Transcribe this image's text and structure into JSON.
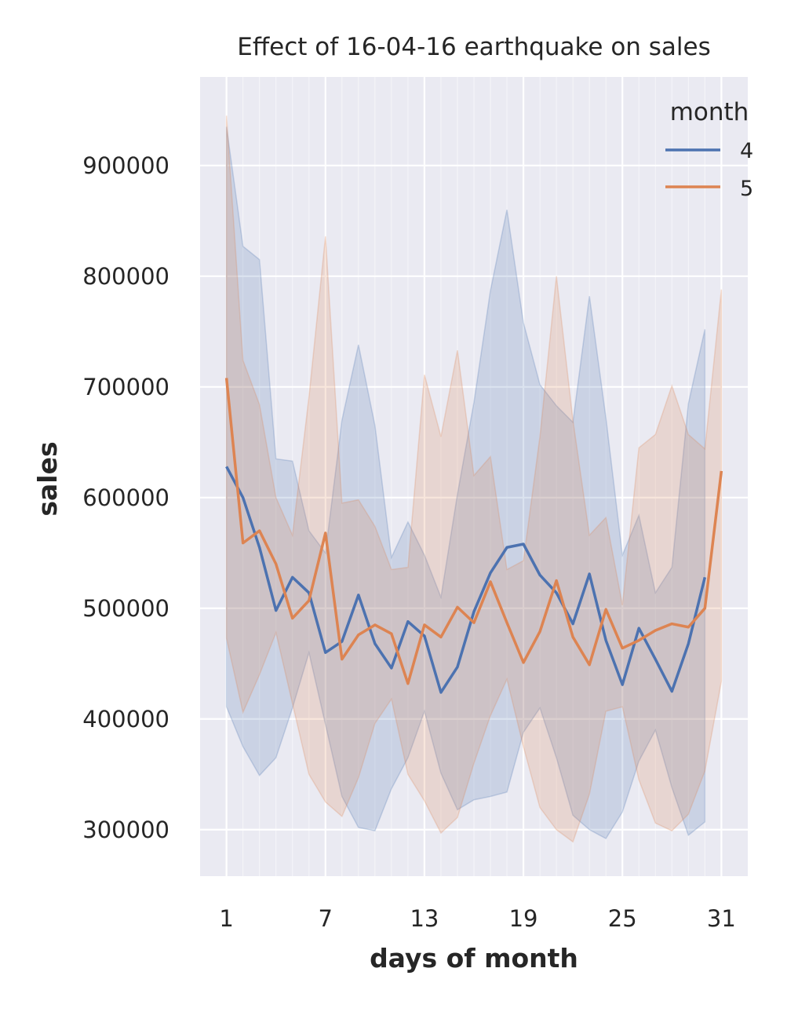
{
  "chart_data": {
    "type": "line",
    "title": "Effect of 16-04-16 earthquake on sales",
    "xlabel": "days of month",
    "ylabel": "sales",
    "xlim": [
      -0.6,
      32.6
    ],
    "ylim": [
      258000,
      980000
    ],
    "xticks": [
      1,
      7,
      13,
      19,
      25,
      31
    ],
    "yticks": [
      300000,
      400000,
      500000,
      600000,
      700000,
      800000,
      900000
    ],
    "grid": true,
    "minor_vertical_grid": true,
    "background": "#eaeaf2",
    "legend": {
      "title": "month",
      "position": "top-right"
    },
    "series": [
      {
        "name": "4",
        "color": "#4c72b0",
        "x": [
          1,
          2,
          3,
          4,
          5,
          6,
          7,
          8,
          9,
          10,
          11,
          12,
          13,
          14,
          15,
          16,
          17,
          18,
          19,
          20,
          21,
          22,
          23,
          24,
          25,
          26,
          27,
          28,
          29,
          30
        ],
        "values": [
          628000,
          600000,
          555000,
          498000,
          528000,
          514000,
          460000,
          470000,
          512000,
          468000,
          446000,
          488000,
          475000,
          424000,
          447000,
          497000,
          532000,
          555000,
          558000,
          530000,
          514000,
          486000,
          531000,
          471000,
          431000,
          482000,
          454000,
          425000,
          468000,
          528000
        ],
        "upper": [
          935000,
          827000,
          815000,
          635000,
          633000,
          570000,
          550000,
          670000,
          738000,
          665000,
          546000,
          578000,
          548000,
          510000,
          603000,
          686000,
          787000,
          860000,
          758000,
          702000,
          683000,
          668000,
          782000,
          672000,
          548000,
          584000,
          514000,
          537000,
          685000,
          752000
        ],
        "lower": [
          411000,
          375000,
          349000,
          365000,
          410000,
          460000,
          395000,
          330000,
          302000,
          299000,
          337000,
          365000,
          407000,
          351000,
          318000,
          327000,
          330000,
          334000,
          388000,
          410000,
          365000,
          313000,
          300000,
          292000,
          316000,
          362000,
          390000,
          338000,
          295000,
          307000
        ]
      },
      {
        "name": "5",
        "color": "#dd8452",
        "x": [
          1,
          2,
          3,
          4,
          5,
          6,
          7,
          8,
          9,
          10,
          11,
          12,
          13,
          14,
          15,
          16,
          17,
          18,
          19,
          20,
          21,
          22,
          23,
          24,
          25,
          26,
          27,
          28,
          29,
          30,
          31
        ],
        "values": [
          708000,
          559000,
          570000,
          540000,
          491000,
          507000,
          568000,
          454000,
          476000,
          485000,
          477000,
          432000,
          485000,
          474000,
          501000,
          487000,
          524000,
          487000,
          451000,
          479000,
          525000,
          474000,
          449000,
          499000,
          464000,
          471000,
          480000,
          486000,
          483000,
          500000,
          624000
        ],
        "upper": [
          945000,
          724000,
          684000,
          600000,
          566000,
          691000,
          836000,
          595000,
          598000,
          574000,
          535000,
          537000,
          711000,
          655000,
          733000,
          620000,
          637000,
          535000,
          543000,
          655000,
          800000,
          670000,
          566000,
          582000,
          503000,
          645000,
          657000,
          701000,
          657000,
          644000,
          788000
        ],
        "lower": [
          473000,
          406000,
          440000,
          478000,
          414000,
          350000,
          325000,
          312000,
          347000,
          396000,
          418000,
          350000,
          326000,
          297000,
          311000,
          360000,
          403000,
          436000,
          375000,
          320000,
          300000,
          289000,
          332000,
          407000,
          411000,
          345000,
          306000,
          299000,
          314000,
          353000,
          434000
        ]
      }
    ]
  }
}
